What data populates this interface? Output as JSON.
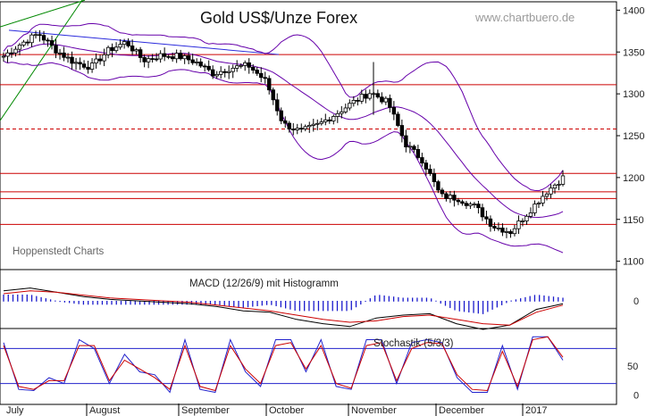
{
  "title": "Gold US$/Unze Forex",
  "watermark": "www.chartbuero.de",
  "source_note": "Hoppenstedt Charts",
  "colors": {
    "candle": "#000000",
    "resistance": "#cc0000",
    "bollinger": "#6600aa",
    "trend_up": "#008800",
    "trend_down": "#2a2adc",
    "macd_line": "#000000",
    "signal_line": "#cc0000",
    "histogram": "#1a1acc",
    "stoch_k": "#2222cc",
    "stoch_d": "#cc0000"
  },
  "chart_data": [
    {
      "type": "candlestick",
      "title": "Gold US$/Unze Forex",
      "x_labels": [
        "July",
        "August",
        "September",
        "October",
        "November",
        "December",
        "2017"
      ],
      "y_ticks": [
        "1400",
        "1350",
        "1300",
        "1250",
        "1200",
        "1150",
        "1100"
      ],
      "ylim": [
        1090,
        1410
      ],
      "horizontal_lines": [
        {
          "value": 1347,
          "style": "solid"
        },
        {
          "value": 1311,
          "style": "solid"
        },
        {
          "value": 1258,
          "style": "dashed"
        },
        {
          "value": 1205,
          "style": "solid"
        },
        {
          "value": 1183,
          "style": "solid"
        },
        {
          "value": 1175,
          "style": "solid"
        },
        {
          "value": 1144,
          "style": "solid"
        }
      ],
      "overlays": [
        "Bollinger Bands",
        "trend lines"
      ],
      "close_path": [
        [
          "July",
          1345
        ],
        [
          "July",
          1360
        ],
        [
          "July",
          1372
        ],
        [
          "July",
          1352
        ],
        [
          "July",
          1338
        ],
        [
          "August",
          1332
        ],
        [
          "August",
          1352
        ],
        [
          "August",
          1362
        ],
        [
          "August",
          1340
        ],
        [
          "August",
          1346
        ],
        [
          "September",
          1345
        ],
        [
          "September",
          1338
        ],
        [
          "September",
          1324
        ],
        [
          "September",
          1331
        ],
        [
          "September",
          1334
        ],
        [
          "October",
          1315
        ],
        [
          "October",
          1264
        ],
        [
          "October",
          1255
        ],
        [
          "October",
          1263
        ],
        [
          "October",
          1276
        ],
        [
          "November",
          1290
        ],
        [
          "November",
          1302
        ],
        [
          "November",
          1289
        ],
        [
          "November",
          1240
        ],
        [
          "November",
          1220
        ],
        [
          "December",
          1178
        ],
        [
          "December",
          1175
        ],
        [
          "December",
          1165
        ],
        [
          "December",
          1142
        ],
        [
          "December",
          1135
        ],
        [
          "2017",
          1158
        ],
        [
          "2017",
          1182
        ],
        [
          "2017",
          1200
        ]
      ]
    },
    {
      "type": "line",
      "title": "MACD (12/26/9) mit Histogramm",
      "y_ticks": [
        "0"
      ],
      "series": [
        {
          "name": "MACD",
          "values": [
            7,
            9,
            6,
            3,
            1,
            0,
            -1,
            -2,
            -4,
            -7,
            -8,
            -13,
            -16,
            -18,
            -12,
            -10,
            -9,
            -16,
            -20,
            -17,
            -6,
            -2
          ]
        },
        {
          "name": "Signal",
          "values": [
            5,
            7,
            6,
            4,
            2,
            1,
            0,
            -1,
            -3,
            -5,
            -7,
            -10,
            -13,
            -15,
            -14,
            -11,
            -10,
            -13,
            -16,
            -17,
            -8,
            -3
          ]
        }
      ]
    },
    {
      "type": "line",
      "title": "Stochastik (5/3/3)",
      "y_ticks": [
        "50",
        "0"
      ],
      "ylim": [
        -5,
        105
      ],
      "reference_lines": [
        80,
        20
      ],
      "series": [
        {
          "name": "%K",
          "values": [
            90,
            10,
            8,
            30,
            20,
            95,
            80,
            20,
            70,
            40,
            35,
            5,
            95,
            10,
            5,
            95,
            40,
            15,
            95,
            95,
            40,
            95,
            15,
            10,
            95,
            95,
            20,
            90,
            95,
            90,
            30,
            5,
            5,
            85,
            10,
            100,
            100,
            60
          ]
        },
        {
          "name": "%D",
          "values": [
            85,
            15,
            10,
            25,
            25,
            85,
            85,
            25,
            60,
            45,
            30,
            10,
            85,
            15,
            8,
            85,
            45,
            20,
            85,
            90,
            45,
            85,
            20,
            12,
            85,
            90,
            25,
            80,
            90,
            88,
            35,
            10,
            8,
            75,
            15,
            95,
            100,
            65
          ]
        }
      ]
    }
  ]
}
